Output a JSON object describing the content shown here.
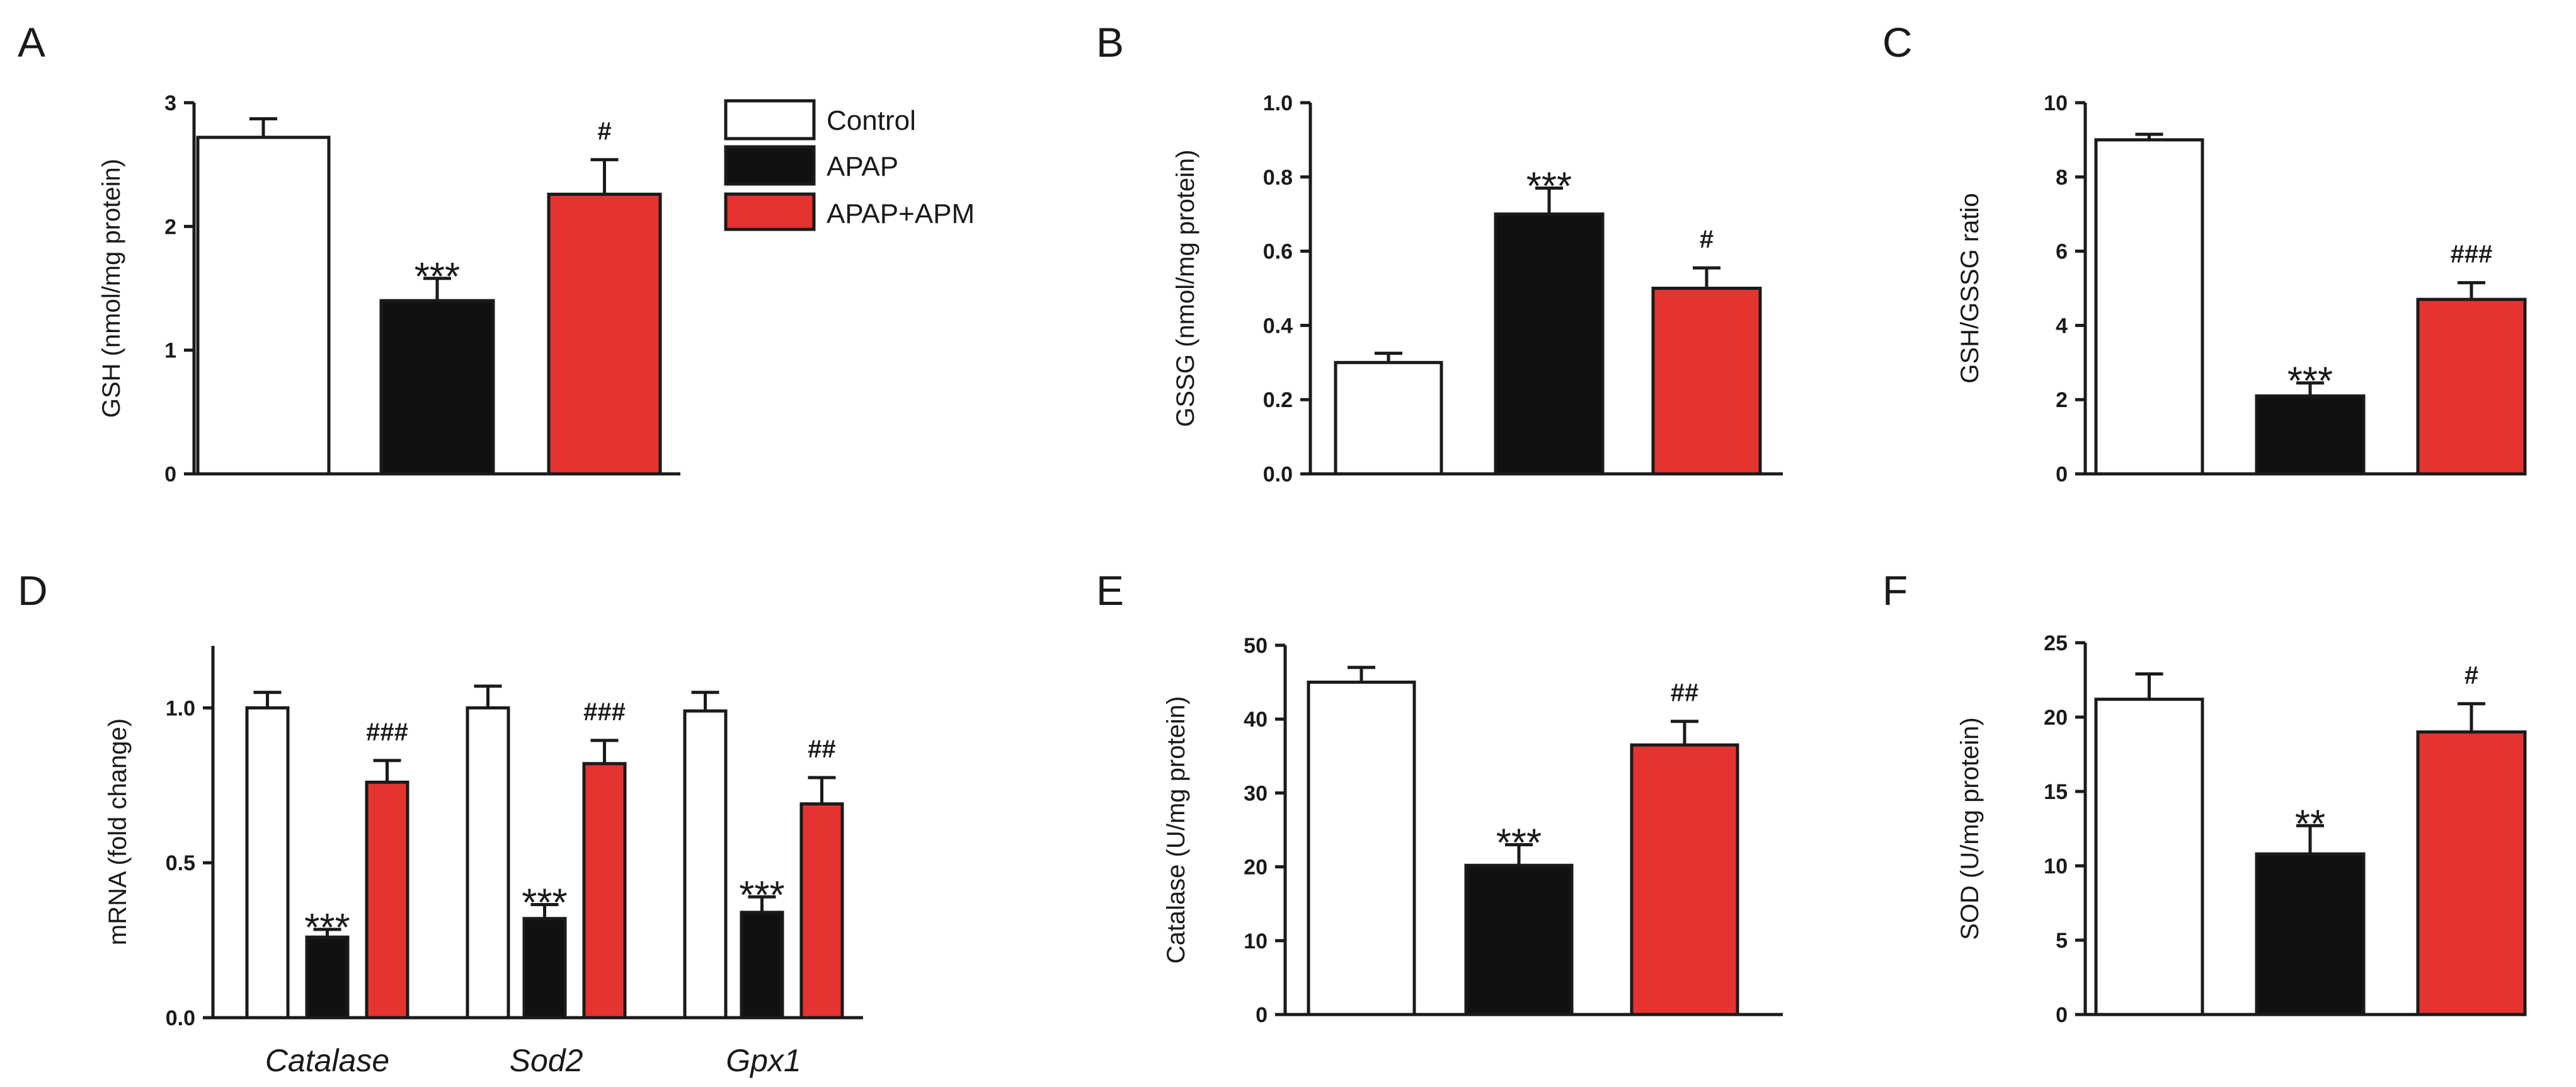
{
  "legend": [
    {
      "label": "Control",
      "color": "#ffffff"
    },
    {
      "label": "APAP",
      "color": "#111111"
    },
    {
      "label": "APAP+APM",
      "color": "#e53430"
    }
  ],
  "chart_data": [
    {
      "panel": "A",
      "type": "bar",
      "ylabel": "GSH (nmol/mg protein)",
      "ylim": [
        0,
        3
      ],
      "yticks": [
        "0",
        "1",
        "2",
        "3"
      ],
      "categories": [
        "Control",
        "APAP",
        "APAP+APM"
      ],
      "values": [
        2.72,
        1.4,
        2.26
      ],
      "errors": [
        0.15,
        0.18,
        0.28
      ],
      "significance": [
        "",
        "***",
        "#"
      ]
    },
    {
      "panel": "B",
      "type": "bar",
      "ylabel": "GSSG (nmol/mg protein)",
      "ylim": [
        0,
        1.0
      ],
      "yticks": [
        "0.0",
        "0.2",
        "0.4",
        "0.6",
        "0.8",
        "1.0"
      ],
      "categories": [
        "Control",
        "APAP",
        "APAP+APM"
      ],
      "values": [
        0.3,
        0.7,
        0.5
      ],
      "errors": [
        0.025,
        0.07,
        0.055
      ],
      "significance": [
        "",
        "***",
        "#"
      ]
    },
    {
      "panel": "C",
      "type": "bar",
      "ylabel": "GSH/GSSG ratio",
      "ylim": [
        0,
        10
      ],
      "yticks": [
        "0",
        "2",
        "4",
        "6",
        "8",
        "10"
      ],
      "categories": [
        "Control",
        "APAP",
        "APAP+APM"
      ],
      "values": [
        9.0,
        2.1,
        4.7
      ],
      "errors": [
        0.15,
        0.35,
        0.45
      ],
      "significance": [
        "",
        "***",
        "###"
      ]
    },
    {
      "panel": "D",
      "type": "bar",
      "ylabel": "mRNA (fold change)",
      "ylim": [
        0,
        1.2
      ],
      "yticks": [
        "0.0",
        "0.5",
        "1.0"
      ],
      "categories": [
        "Catalase",
        "Sod2",
        "Gpx1"
      ],
      "series": [
        {
          "name": "Control",
          "values": [
            1.0,
            1.0,
            0.99
          ],
          "errors": [
            0.05,
            0.07,
            0.06
          ]
        },
        {
          "name": "APAP",
          "values": [
            0.26,
            0.32,
            0.34
          ],
          "errors": [
            0.025,
            0.045,
            0.05
          ]
        },
        {
          "name": "APAP+APM",
          "values": [
            0.76,
            0.82,
            0.69
          ],
          "errors": [
            0.07,
            0.075,
            0.085
          ]
        }
      ],
      "significance": [
        [
          "",
          "***",
          "###"
        ],
        [
          "",
          "***",
          "###"
        ],
        [
          "",
          "***",
          "##"
        ]
      ]
    },
    {
      "panel": "E",
      "type": "bar",
      "ylabel": "Catalase (U/mg protein)",
      "ylim": [
        0,
        50
      ],
      "yticks": [
        "0",
        "10",
        "20",
        "30",
        "40",
        "50"
      ],
      "categories": [
        "Control",
        "APAP",
        "APAP+APM"
      ],
      "values": [
        45.0,
        20.2,
        36.5
      ],
      "errors": [
        2.0,
        2.8,
        3.2
      ],
      "significance": [
        "",
        "***",
        "##"
      ]
    },
    {
      "panel": "F",
      "type": "bar",
      "ylabel": "SOD (U/mg protein)",
      "ylim": [
        0,
        25
      ],
      "yticks": [
        "0",
        "5",
        "10",
        "15",
        "20",
        "25"
      ],
      "categories": [
        "Control",
        "APAP",
        "APAP+APM"
      ],
      "values": [
        21.2,
        10.8,
        19.0
      ],
      "errors": [
        1.7,
        1.9,
        1.9
      ],
      "significance": [
        "",
        "**",
        "#"
      ]
    }
  ]
}
